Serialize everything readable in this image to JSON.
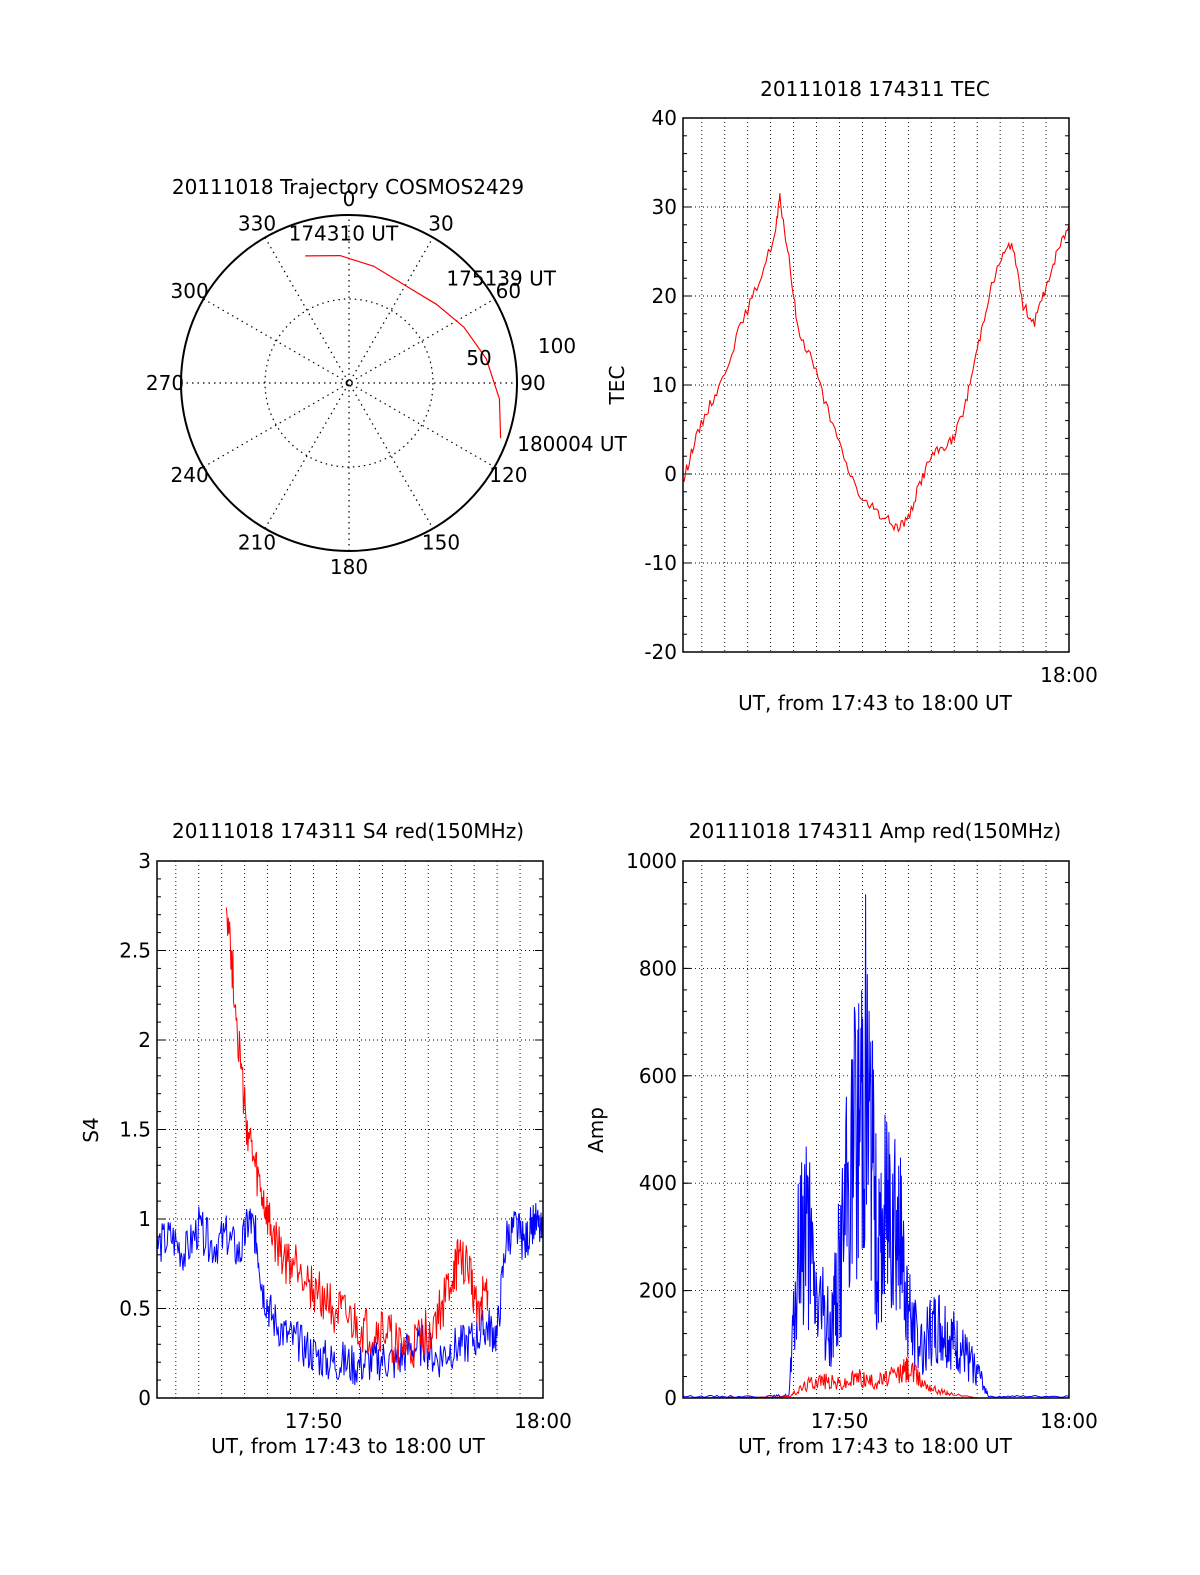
{
  "chart_data": [
    {
      "id": "trajectory",
      "type": "polar",
      "title": "20111018 Trajectory COSMOS2429",
      "azimuth_labels": [
        "0",
        "30",
        "60",
        "90",
        "120",
        "150",
        "180",
        "210",
        "240",
        "270",
        "300",
        "330"
      ],
      "elevation_labels": [
        "50",
        "100"
      ],
      "series": [
        {
          "color": "#ff0000",
          "points": [
            {
              "az": 341,
              "el": 20
            },
            {
              "az": 356,
              "el": 24
            },
            {
              "az": 12,
              "el": 29
            },
            {
              "az": 30,
              "el": 33
            },
            {
              "az": 48,
              "el": 30
            },
            {
              "az": 64,
              "el": 24
            },
            {
              "az": 80,
              "el": 17
            },
            {
              "az": 96,
              "el": 10
            },
            {
              "az": 110,
              "el": 4
            }
          ]
        }
      ],
      "annotations": [
        {
          "text": "174310 UT",
          "az": 337,
          "el": 8
        },
        {
          "text": "175139 UT",
          "az": 45,
          "el": 18
        },
        {
          "text": "180004 UT",
          "az": 112,
          "el": -8
        }
      ]
    },
    {
      "id": "tec",
      "type": "line",
      "title": "20111018 174311 TEC",
      "xlabel": "UT, from 17:43 to 18:00 UT",
      "ylabel": "TEC",
      "xlim": [
        43.18,
        60
      ],
      "ylim": [
        -20,
        40
      ],
      "yticks": [
        "40",
        "30",
        "20",
        "10",
        "0",
        "-10",
        "-20"
      ],
      "xtick_labels": [
        {
          "x": 60,
          "label": "18:00"
        }
      ],
      "grid": true,
      "series": [
        {
          "color": "#ff0000",
          "x": [
            43.18,
            43.6,
            44.2,
            44.8,
            45.6,
            46.4,
            47.2,
            47.4,
            47.8,
            48.2,
            48.8,
            49.5,
            50.3,
            51.0,
            51.5,
            52.0,
            52.5,
            53.0,
            53.5,
            54.0,
            54.5,
            55.0,
            55.5,
            56.0,
            56.5,
            57.0,
            57.5,
            58.0,
            58.5,
            59.0,
            59.5,
            60.0
          ],
          "y": [
            -1,
            3,
            7,
            10,
            16,
            21,
            27,
            31,
            24,
            16,
            13,
            7,
            1,
            -3,
            -4,
            -5,
            -6,
            -5,
            -1,
            2,
            3,
            4,
            8,
            14,
            20,
            24,
            26,
            19,
            17,
            21,
            25,
            28
          ]
        }
      ]
    },
    {
      "id": "s4",
      "type": "line",
      "title": "20111018 174311 S4 red(150MHz)",
      "xlabel": "UT, from 17:43 to 18:00 UT",
      "ylabel": "S4",
      "xlim": [
        43.18,
        60
      ],
      "ylim": [
        0,
        3
      ],
      "yticks": [
        "3",
        "2.5",
        "2",
        "1.5",
        "1",
        "0.5",
        "0"
      ],
      "xtick_labels": [
        {
          "x": 50,
          "label": "17:50"
        },
        {
          "x": 60,
          "label": "18:00"
        }
      ],
      "grid": true,
      "series": [
        {
          "color": "#0000ff",
          "x": [
            43.18,
            43.8,
            44.4,
            45.0,
            45.6,
            46.2,
            46.8,
            47.2,
            47.5,
            47.8,
            48.2,
            48.8,
            49.4,
            50.0,
            50.6,
            51.2,
            51.8,
            52.4,
            53.0,
            53.6,
            54.2,
            54.8,
            55.4,
            56.0,
            56.6,
            57.2,
            57.6,
            58.0,
            58.4,
            58.8,
            59.2,
            59.6,
            60.0
          ],
          "y": [
            0.85,
            0.9,
            0.8,
            0.95,
            0.85,
            0.9,
            0.8,
            1.0,
            0.9,
            0.6,
            0.45,
            0.35,
            0.3,
            0.25,
            0.2,
            0.2,
            0.18,
            0.2,
            0.22,
            0.2,
            0.28,
            0.3,
            0.22,
            0.28,
            0.3,
            0.35,
            0.4,
            0.35,
            0.9,
            0.95,
            0.85,
            1.0,
            0.9
          ]
        },
        {
          "color": "#ff0000",
          "x": [
            46.2,
            46.6,
            47.0,
            47.4,
            47.8,
            48.2,
            48.8,
            49.4,
            50.0,
            50.6,
            51.2,
            51.8,
            52.4,
            53.0,
            53.6,
            54.2,
            54.8,
            55.4,
            56.0,
            56.4,
            56.8,
            57.2,
            57.6
          ],
          "y": [
            2.8,
            2.2,
            1.6,
            1.3,
            1.1,
            0.9,
            0.75,
            0.75,
            0.6,
            0.55,
            0.45,
            0.4,
            0.35,
            0.38,
            0.3,
            0.25,
            0.35,
            0.45,
            0.65,
            0.8,
            0.7,
            0.5,
            0.6
          ]
        }
      ]
    },
    {
      "id": "amp",
      "type": "line",
      "title": "20111018 174311 Amp red(150MHz)",
      "xlabel": "UT, from 17:43 to 18:00 UT",
      "ylabel": "Amp",
      "xlim": [
        43.18,
        60
      ],
      "ylim": [
        0,
        1000
      ],
      "yticks": [
        "1000",
        "800",
        "600",
        "400",
        "200",
        "0"
      ],
      "xtick_labels": [
        {
          "x": 50,
          "label": "17:50"
        },
        {
          "x": 60,
          "label": "18:00"
        }
      ],
      "grid": true,
      "series": [
        {
          "color": "#0000ff",
          "x": [
            43.18,
            45.0,
            47.0,
            47.8,
            48.2,
            48.5,
            48.9,
            49.3,
            49.6,
            50.0,
            50.4,
            50.8,
            51.1,
            51.4,
            51.7,
            52.0,
            52.3,
            52.6,
            52.9,
            53.2,
            53.6,
            54.0,
            54.4,
            54.8,
            55.2,
            55.6,
            56.0,
            56.5,
            58.0,
            60.0
          ],
          "y": [
            3,
            3,
            3,
            5,
            250,
            350,
            200,
            150,
            120,
            250,
            400,
            500,
            650,
            450,
            250,
            350,
            420,
            300,
            200,
            120,
            100,
            120,
            130,
            110,
            90,
            70,
            50,
            3,
            3,
            3
          ]
        },
        {
          "color": "#ff0000",
          "x": [
            43.18,
            47.8,
            48.4,
            49.0,
            49.6,
            50.2,
            50.8,
            51.4,
            52.0,
            52.6,
            53.0,
            53.6,
            54.2,
            54.8,
            56.0,
            60.0
          ],
          "y": [
            0,
            2,
            20,
            35,
            30,
            25,
            40,
            30,
            35,
            45,
            55,
            30,
            15,
            8,
            0,
            0
          ]
        }
      ]
    }
  ]
}
